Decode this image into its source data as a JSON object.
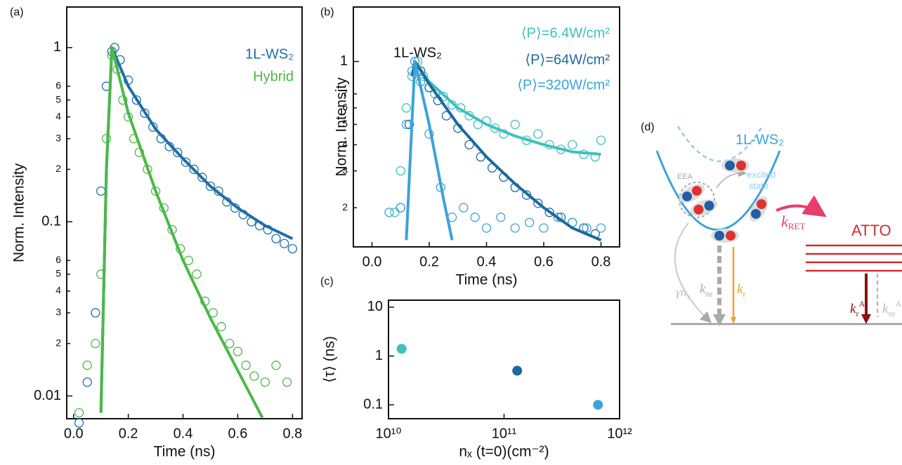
{
  "chart_data": [
    {
      "type": "scatter",
      "label": "(a)",
      "xlabel": "Time (ns)",
      "ylabel": "Norm. Intensity",
      "xscale": "linear",
      "yscale": "log",
      "xlim": [
        -0.025,
        0.835
      ],
      "ylim": [
        0.0074,
        1.71
      ],
      "xticks": [
        {
          "value": 0,
          "label": "0.0"
        },
        0.2,
        0.4,
        0.6,
        0.8
      ],
      "yticks": [
        0.01,
        {
          "value": 0.02,
          "label": "2"
        },
        {
          "value": 0.03,
          "label": "3"
        },
        {
          "value": 0.04,
          "label": "4"
        },
        {
          "value": 0.05,
          "label": "5"
        },
        {
          "value": 0.06,
          "label": "6"
        },
        0.1,
        {
          "value": 0.2,
          "label": "2"
        },
        {
          "value": 0.3,
          "label": "3"
        },
        {
          "value": 0.4,
          "label": "4"
        },
        {
          "value": 0.5,
          "label": "5"
        },
        {
          "value": 0.6,
          "label": "6"
        },
        1
      ],
      "series": [
        {
          "name": "1L-WS₂",
          "color": "#1f6ea8",
          "x": [
            0.02,
            0.05,
            0.08,
            0.1,
            0.12,
            0.14,
            0.15,
            0.17,
            0.2,
            0.23,
            0.26,
            0.29,
            0.32,
            0.35,
            0.38,
            0.41,
            0.44,
            0.47,
            0.5,
            0.53,
            0.56,
            0.59,
            0.62,
            0.65,
            0.68,
            0.71,
            0.74,
            0.77,
            0.8
          ],
          "values": [
            0.007,
            0.012,
            0.03,
            0.15,
            0.6,
            0.95,
            1.0,
            0.85,
            0.65,
            0.5,
            0.42,
            0.35,
            0.3,
            0.27,
            0.25,
            0.22,
            0.2,
            0.18,
            0.16,
            0.15,
            0.13,
            0.12,
            0.11,
            0.1,
            0.095,
            0.09,
            0.08,
            0.075,
            0.07
          ],
          "fit_x": [
            0.1,
            0.12,
            0.14,
            0.2,
            0.3,
            0.4,
            0.5,
            0.6,
            0.7,
            0.8
          ],
          "fit_values": [
            0.008,
            0.2,
            1.0,
            0.6,
            0.34,
            0.23,
            0.16,
            0.12,
            0.095,
            0.08
          ]
        },
        {
          "name": "Hybrid",
          "color": "#4cb848",
          "x": [
            0.02,
            0.05,
            0.08,
            0.1,
            0.12,
            0.14,
            0.16,
            0.18,
            0.2,
            0.22,
            0.24,
            0.27,
            0.3,
            0.33,
            0.36,
            0.39,
            0.42,
            0.45,
            0.48,
            0.51,
            0.54,
            0.57,
            0.6,
            0.63,
            0.66,
            0.7,
            0.74,
            0.78
          ],
          "values": [
            0.008,
            0.015,
            0.02,
            0.05,
            0.3,
            0.9,
            0.75,
            0.5,
            0.4,
            0.3,
            0.25,
            0.2,
            0.15,
            0.12,
            0.09,
            0.07,
            0.06,
            0.05,
            0.035,
            0.03,
            0.025,
            0.02,
            0.018,
            0.015,
            0.013,
            0.012,
            0.015,
            0.012
          ],
          "fit_x": [
            0.1,
            0.12,
            0.14,
            0.2,
            0.3,
            0.4,
            0.5,
            0.6,
            0.69
          ],
          "fit_values": [
            0.008,
            0.2,
            1.0,
            0.42,
            0.15,
            0.06,
            0.028,
            0.014,
            0.0075
          ]
        }
      ]
    },
    {
      "type": "scatter",
      "label": "(b)",
      "xlabel": "Time (ns)",
      "ylabel": "Norm. Intensity",
      "annotation": "1L-WS₂",
      "xscale": "linear",
      "yscale": "log",
      "xlim": [
        -0.065,
        0.865
      ],
      "ylim": [
        0.13,
        1.82
      ],
      "xticks": [
        {
          "value": 0,
          "label": "0.0"
        },
        0.2,
        0.4,
        0.6,
        0.8
      ],
      "yticks": [
        {
          "value": 0.2,
          "label": "2"
        },
        {
          "value": 0.3,
          "label": "3"
        },
        {
          "value": 0.4,
          "label": "4"
        },
        {
          "value": 0.5,
          "label": "5"
        },
        {
          "value": 0.6,
          "label": "6"
        },
        {
          "value": 0.7,
          "label": "7"
        },
        1
      ],
      "series": [
        {
          "name": "⟨P⟩=6.4W/cm²",
          "color": "#3fc1bd",
          "x": [
            0.08,
            0.1,
            0.12,
            0.14,
            0.16,
            0.18,
            0.2,
            0.22,
            0.25,
            0.28,
            0.31,
            0.34,
            0.37,
            0.4,
            0.43,
            0.46,
            0.5,
            0.54,
            0.58,
            0.62,
            0.66,
            0.7,
            0.74,
            0.78,
            0.8
          ],
          "values": [
            0.19,
            0.3,
            0.6,
            0.85,
            1.0,
            0.85,
            0.75,
            0.7,
            0.68,
            0.62,
            0.6,
            0.55,
            0.5,
            0.52,
            0.48,
            0.45,
            0.5,
            0.42,
            0.45,
            0.4,
            0.38,
            0.4,
            0.36,
            0.35,
            0.42
          ],
          "fit_x": [
            0.15,
            0.2,
            0.3,
            0.4,
            0.5,
            0.6,
            0.7,
            0.8
          ],
          "fit_values": [
            1.0,
            0.8,
            0.6,
            0.5,
            0.44,
            0.4,
            0.37,
            0.36
          ]
        },
        {
          "name": "⟨P⟩=64W/cm²",
          "color": "#1a6aa0",
          "x": [
            0.1,
            0.13,
            0.15,
            0.17,
            0.2,
            0.23,
            0.26,
            0.3,
            0.34,
            0.38,
            0.42,
            0.46,
            0.5,
            0.54,
            0.58,
            0.62,
            0.66,
            0.7,
            0.74,
            0.78
          ],
          "values": [
            0.2,
            0.5,
            1.0,
            0.9,
            0.75,
            0.65,
            0.55,
            0.48,
            0.4,
            0.35,
            0.31,
            0.28,
            0.25,
            0.23,
            0.21,
            0.19,
            0.18,
            0.17,
            0.16,
            0.15
          ],
          "fit_x": [
            0.14,
            0.15,
            0.2,
            0.3,
            0.4,
            0.5,
            0.6,
            0.7,
            0.8
          ],
          "fit_values": [
            0.85,
            1.0,
            0.78,
            0.5,
            0.35,
            0.26,
            0.2,
            0.16,
            0.14
          ]
        },
        {
          "name": "⟨P⟩=320W/cm²",
          "color": "#3ba3dc",
          "x": [
            0.06,
            0.1,
            0.12,
            0.14,
            0.15,
            0.17,
            0.2,
            0.24,
            0.28,
            0.32,
            0.36,
            0.4,
            0.45,
            0.5,
            0.55,
            0.6,
            0.65,
            0.7,
            0.75,
            0.8
          ],
          "values": [
            0.19,
            0.2,
            0.5,
            0.9,
            1.0,
            0.8,
            0.45,
            0.25,
            0.18,
            0.2,
            0.18,
            0.16,
            0.18,
            0.16,
            0.17,
            0.16,
            0.18,
            0.17,
            0.16,
            0.16
          ],
          "fit_x": [
            0.12,
            0.15,
            0.2,
            0.25,
            0.28
          ],
          "fit_values": [
            0.14,
            1.0,
            0.5,
            0.22,
            0.14
          ]
        }
      ]
    },
    {
      "type": "scatter",
      "label": "(c)",
      "xlabel": "nₓ (t=0)(cm⁻²)",
      "ylabel": "⟨τ⟩  (ns)",
      "xscale": "log",
      "yscale": "log",
      "xlim": [
        10000000000,
        1000000000000
      ],
      "ylim": [
        0.052,
        13.9
      ],
      "xticks": [
        {
          "value": 10000000000,
          "label": "10¹⁰"
        },
        {
          "value": 100000000000,
          "label": "10¹¹"
        },
        {
          "value": 1000000000000,
          "label": "10¹²"
        }
      ],
      "yticks": [
        0.1,
        1,
        10
      ],
      "x": [
        13000000000,
        130000000000,
        650000000000
      ],
      "values": [
        1.4,
        0.5,
        0.1
      ],
      "colors": [
        "#3fc1bd",
        "#1a6aa0",
        "#3ba3dc"
      ]
    }
  ],
  "diagram": {
    "label": "(d)",
    "material": "1L-WS₂",
    "eea": "EEA",
    "excited": "excited",
    "state": "state",
    "acceptor": "ATTO",
    "k": "k",
    "ret": "RET",
    "gamma": "γn",
    "x_sub": "x",
    "nr": "nr",
    "r": "r",
    "a_sup": "A"
  }
}
